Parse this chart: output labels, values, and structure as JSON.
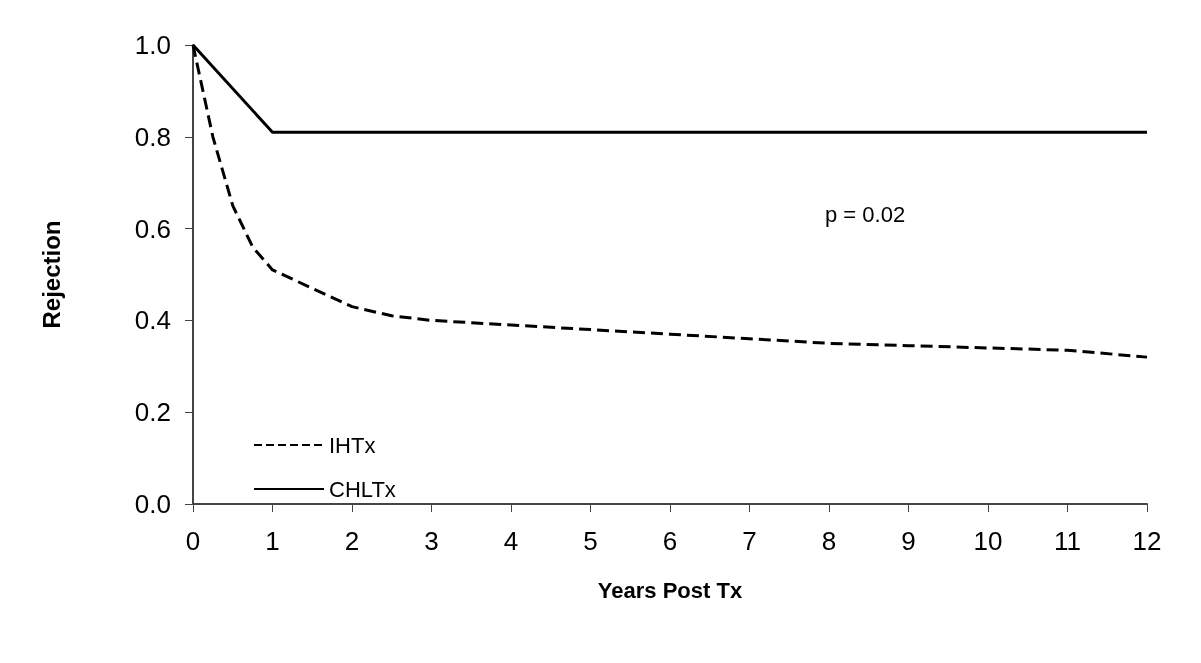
{
  "chart_data": {
    "type": "line",
    "xlabel": "Years Post Tx",
    "ylabel": "Rejection",
    "xlim": [
      0,
      12
    ],
    "xticks": [
      0,
      1,
      2,
      3,
      4,
      5,
      6,
      7,
      8,
      9,
      10,
      11,
      12
    ],
    "ylim": [
      0,
      1
    ],
    "yticks": [
      {
        "value": 0,
        "label": "0.0"
      },
      {
        "value": 0.2,
        "label": "0.2"
      },
      {
        "value": 0.4,
        "label": "0.4"
      },
      {
        "value": 0.6,
        "label": "0.6"
      },
      {
        "value": 0.8,
        "label": "0.8"
      },
      {
        "value": 1,
        "label": "1.0"
      }
    ],
    "grid": false,
    "legend": "bottom left",
    "marker": "none",
    "annotations": [
      "p = 0.02"
    ],
    "series": [
      {
        "name": "IHTx",
        "color": "#000000",
        "line_style": "dashed",
        "x": [
          0,
          0.25,
          0.5,
          0.75,
          1,
          1.5,
          2,
          2.5,
          3,
          4,
          5,
          6,
          7,
          8,
          9,
          10,
          11,
          12
        ],
        "values": [
          1,
          0.8,
          0.65,
          0.56,
          0.51,
          0.47,
          0.43,
          0.41,
          0.4,
          0.39,
          0.38,
          0.37,
          0.36,
          0.35,
          0.345,
          0.34,
          0.335,
          0.32
        ]
      },
      {
        "name": "CHLTx",
        "color": "#000000",
        "line_style": "solid",
        "x": [
          0,
          1,
          12
        ],
        "values": [
          1,
          0.81,
          0.81
        ]
      }
    ]
  }
}
